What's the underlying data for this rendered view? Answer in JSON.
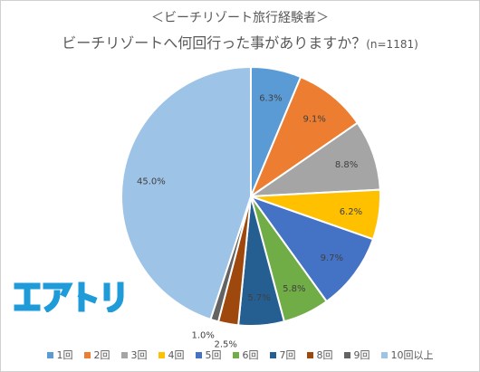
{
  "chart_data": {
    "type": "pie",
    "subtitle": "＜ビーチリゾート旅行経験者＞",
    "title": "ビーチリゾートへ何回行った事がありますか？",
    "sample_note": "(n=1181)",
    "logo_text": "エアトリ",
    "legend_position": "bottom",
    "slices": [
      {
        "label": "1回",
        "value": 6.3,
        "display": "6.3%",
        "color": "#5b9bd5"
      },
      {
        "label": "2回",
        "value": 9.1,
        "display": "9.1%",
        "color": "#ed7d31"
      },
      {
        "label": "3回",
        "value": 8.8,
        "display": "8.8%",
        "color": "#a5a5a5"
      },
      {
        "label": "4回",
        "value": 6.2,
        "display": "6.2%",
        "color": "#ffc000"
      },
      {
        "label": "5回",
        "value": 9.7,
        "display": "9.7%",
        "color": "#4472c4"
      },
      {
        "label": "6回",
        "value": 5.8,
        "display": "5.8%",
        "color": "#70ad47"
      },
      {
        "label": "7回",
        "value": 5.7,
        "display": "5.7%",
        "color": "#255e91"
      },
      {
        "label": "8回",
        "value": 2.5,
        "display": "2.5%",
        "color": "#9e480e"
      },
      {
        "label": "9回",
        "value": 1.0,
        "display": "1.0%",
        "color": "#636363"
      },
      {
        "label": "10回以上",
        "value": 45.0,
        "display": "45.0%",
        "color": "#9dc3e6"
      }
    ]
  }
}
